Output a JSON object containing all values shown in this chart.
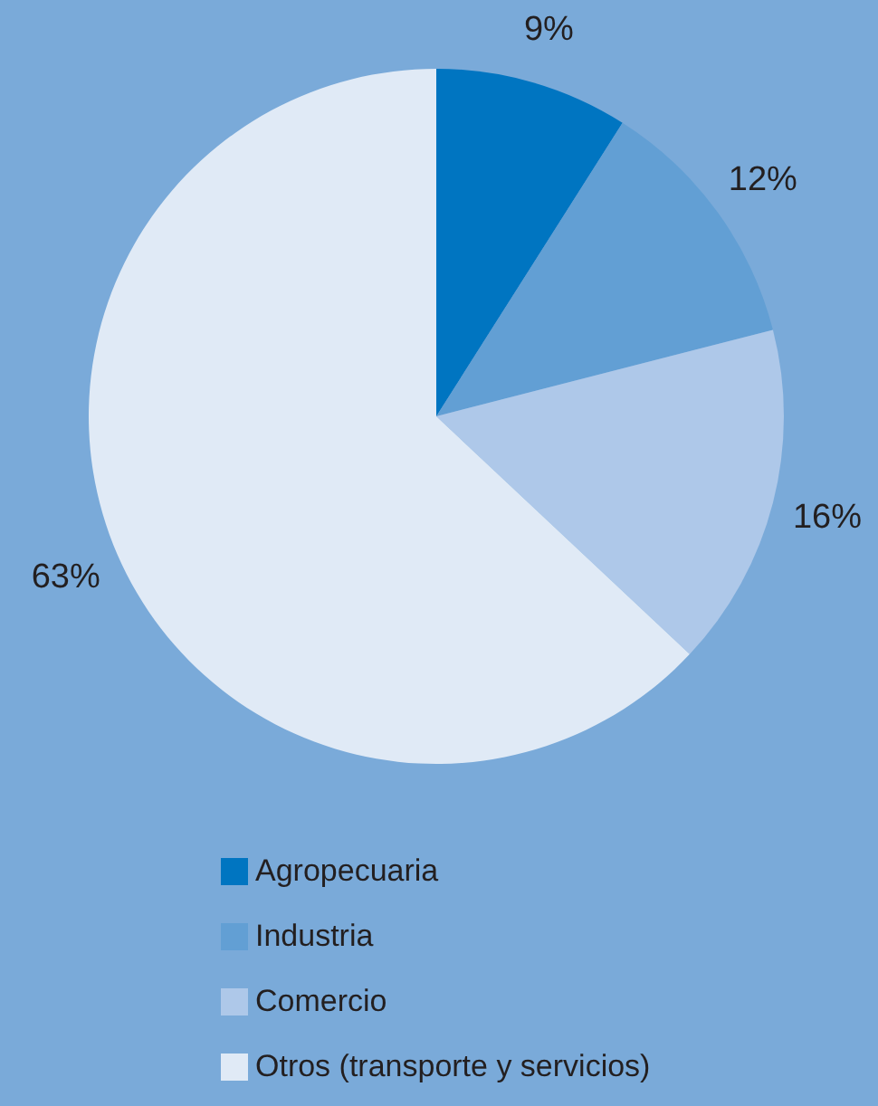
{
  "chart_data": {
    "type": "pie",
    "categories": [
      "Agropecuaria",
      "Industria",
      "Comercio",
      "Otros (transporte y servicios)"
    ],
    "values": [
      9,
      12,
      16,
      63
    ],
    "colors": [
      "#0075c1",
      "#629fd4",
      "#aec8e9",
      "#e0eaf6"
    ],
    "value_labels": [
      "9%",
      "12%",
      "16%",
      "63%"
    ],
    "legend": "bottom"
  }
}
